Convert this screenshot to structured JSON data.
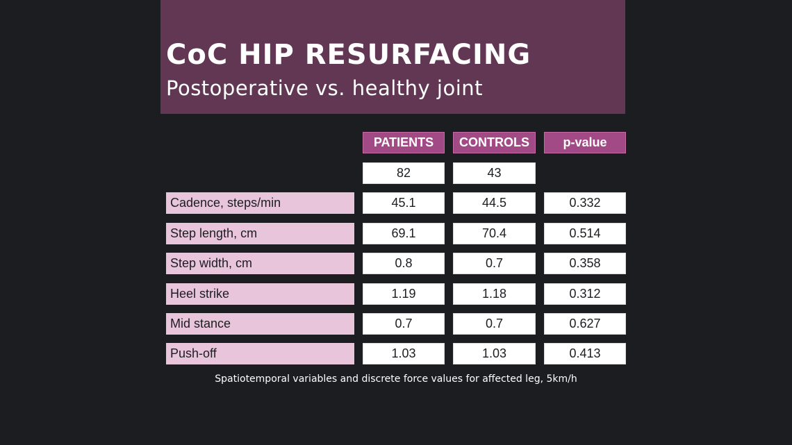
{
  "header": {
    "title": "CoC HIP RESURFACING",
    "subtitle": "Postoperative vs. healthy joint"
  },
  "table": {
    "columns": [
      "PATIENTS",
      "CONTROLS",
      "p-value"
    ],
    "counts": [
      "82",
      "43"
    ],
    "rows": [
      {
        "label": "Cadence, steps/min",
        "patients": "45.1",
        "controls": "44.5",
        "p": "0.332"
      },
      {
        "label": "Step length, cm",
        "patients": "69.1",
        "controls": "70.4",
        "p": "0.514"
      },
      {
        "label": "Step width, cm",
        "patients": "0.8",
        "controls": "0.7",
        "p": "0.358"
      },
      {
        "label": "Heel strike",
        "patients": "1.19",
        "controls": "1.18",
        "p": "0.312"
      },
      {
        "label": "Mid stance",
        "patients": "0.7",
        "controls": "0.7",
        "p": "0.627"
      },
      {
        "label": "Push-off",
        "patients": "1.03",
        "controls": "1.03",
        "p": "0.413"
      }
    ]
  },
  "caption": "Spatiotemporal variables and discrete force values for affected leg, 5km/h",
  "colors": {
    "background": "#1b1d21",
    "banner": "#613753",
    "header_cell": "#a24a86",
    "label_cell": "#e9c5dc"
  }
}
